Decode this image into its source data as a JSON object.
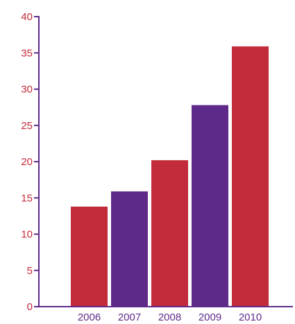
{
  "chart_data": {
    "type": "bar",
    "categories": [
      "2006",
      "2007",
      "2008",
      "2009",
      "2010"
    ],
    "values": [
      13.8,
      15.9,
      20.2,
      27.8,
      35.9
    ],
    "bar_colors": [
      "#c22b3a",
      "#5e2a8a",
      "#c22b3a",
      "#5e2a8a",
      "#c22b3a"
    ],
    "ylim": [
      0,
      40
    ],
    "yticks": [
      "0",
      "5",
      "10",
      "15",
      "20",
      "25",
      "30",
      "35",
      "40"
    ],
    "grid": false,
    "legend": "none"
  },
  "colors": {
    "axis": "#5e2a8a",
    "y_tick_label": "#c22b3a",
    "x_tick_label": "#5e2a8a"
  }
}
